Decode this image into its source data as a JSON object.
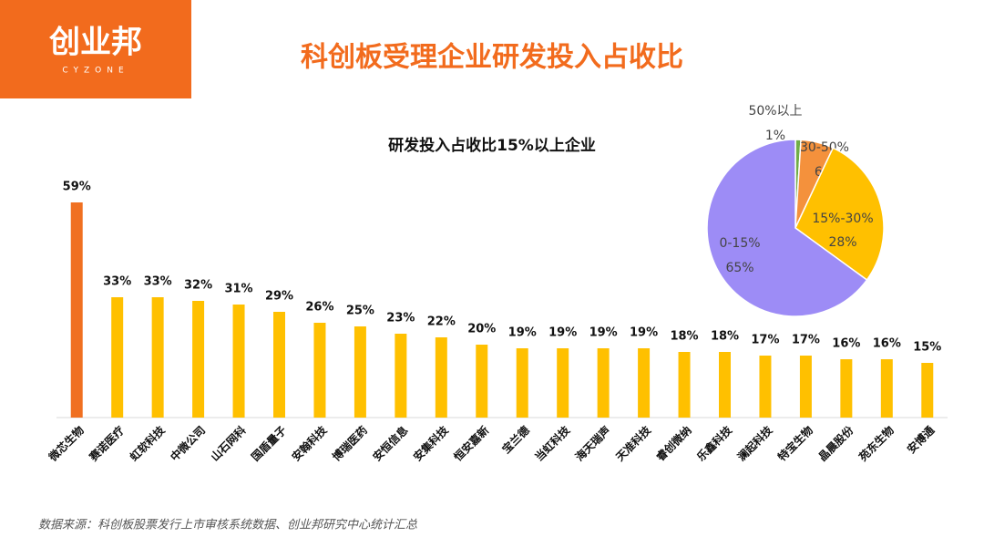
{
  "header": {
    "logo": "创业邦",
    "logo_sub": "CYZONE",
    "title": "科创板受理企业研发投入占收比"
  },
  "chart_data": [
    {
      "type": "bar",
      "title": "研发投入占收比15%以上企业",
      "categories": [
        "微芯生物",
        "赛诺医疗",
        "虹软科技",
        "中微公司",
        "山石网科",
        "国盾量子",
        "安翰科技",
        "博瑞医药",
        "安恒信息",
        "安集科技",
        "恒安嘉新",
        "宝兰德",
        "当虹科技",
        "海天瑞声",
        "天准科技",
        "睿创微纳",
        "乐鑫科技",
        "澜起科技",
        "特宝生物",
        "晶晨股份",
        "苑东生物",
        "安博通"
      ],
      "values": [
        59,
        33,
        33,
        32,
        31,
        29,
        26,
        25,
        23,
        22,
        20,
        19,
        19,
        19,
        19,
        18,
        18,
        17,
        17,
        16,
        16,
        15
      ],
      "value_labels": [
        "59%",
        "33%",
        "33%",
        "32%",
        "31%",
        "29%",
        "26%",
        "25%",
        "23%",
        "22%",
        "20%",
        "19%",
        "19%",
        "19%",
        "19%",
        "18%",
        "18%",
        "17%",
        "17%",
        "16%",
        "16%",
        "15%"
      ],
      "colors": [
        "#f07021",
        "#ffc000",
        "#ffc000",
        "#ffc000",
        "#ffc000",
        "#ffc000",
        "#ffc000",
        "#ffc000",
        "#ffc000",
        "#ffc000",
        "#ffc000",
        "#ffc000",
        "#ffc000",
        "#ffc000",
        "#ffc000",
        "#ffc000",
        "#ffc000",
        "#ffc000",
        "#ffc000",
        "#ffc000",
        "#ffc000",
        "#ffc000"
      ]
    },
    {
      "type": "pie",
      "categories": [
        "50%以上",
        "30-50%",
        "15%-30%",
        "0-15%"
      ],
      "values": [
        1,
        6,
        28,
        65
      ],
      "value_labels": [
        "1%",
        "6%",
        "28%",
        "65%"
      ],
      "colors": [
        "#70ad47",
        "#f4913c",
        "#ffc000",
        "#9d8cf6"
      ]
    }
  ],
  "source": "数据来源：科创板股票发行上市审核系统数据、创业邦研究中心统计汇总"
}
